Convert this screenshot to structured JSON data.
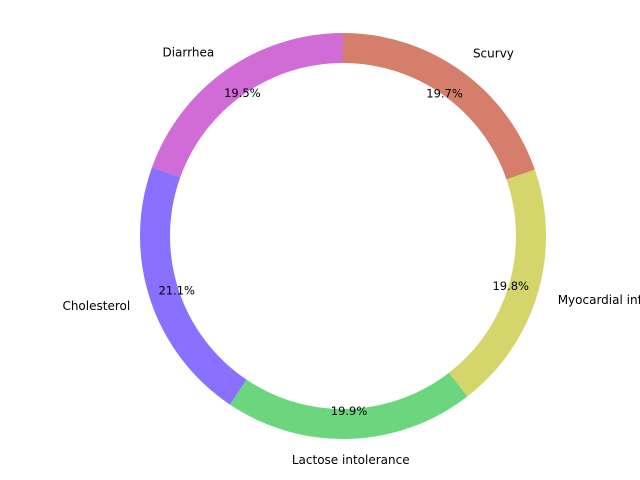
{
  "chart_data": {
    "type": "pie",
    "variant": "donut",
    "start_angle_deg": 90,
    "direction": "counterclockwise",
    "slices": [
      {
        "label": "Diarrhea",
        "value": 19.5,
        "pct_label": "19.5%",
        "color": "#d16bd6"
      },
      {
        "label": "Cholesterol",
        "value": 21.1,
        "pct_label": "21.1%",
        "color": "#8a70ff"
      },
      {
        "label": "Lactose intolerance",
        "value": 19.9,
        "pct_label": "19.9%",
        "color": "#6cd67e"
      },
      {
        "label": "Myocardial infarction",
        "value": 19.8,
        "pct_label": "19.8%",
        "color": "#d4d66c"
      },
      {
        "label": "Scurvy",
        "value": 19.7,
        "pct_label": "19.7%",
        "color": "#d67e6c"
      }
    ]
  }
}
